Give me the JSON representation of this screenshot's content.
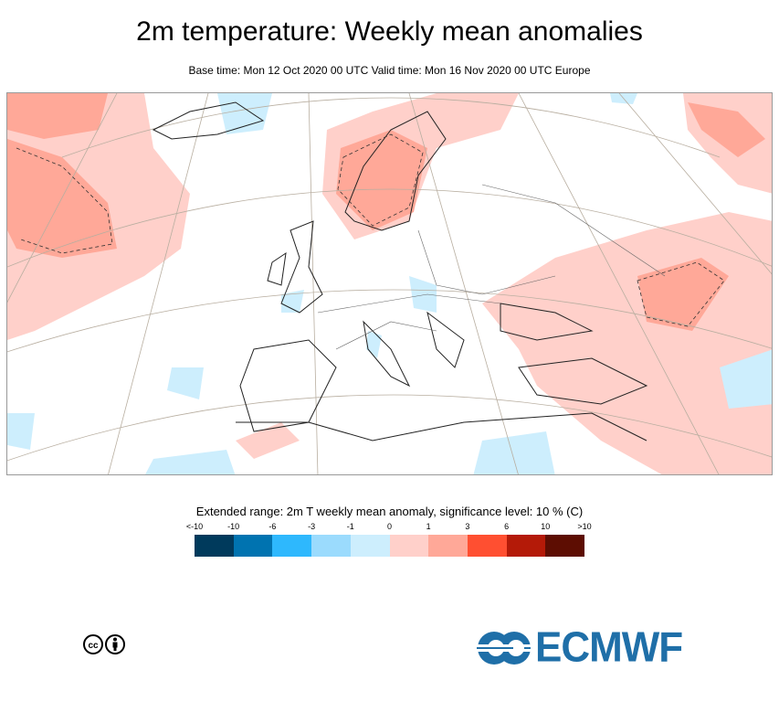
{
  "header": {
    "title": "2m temperature: Weekly mean anomalies",
    "subtitle": "Base time: Mon 12 Oct 2020 00 UTC Valid time: Mon 16 Nov 2020 00 UTC Europe"
  },
  "legend": {
    "title": "Extended range: 2m T weekly mean anomaly, significance level: 10 % (C)",
    "ticks": [
      "<-10",
      "-10",
      "-6",
      "-3",
      "-1",
      "0",
      "1",
      "3",
      "6",
      "10",
      ">10"
    ],
    "colors": [
      "#003a5c",
      "#0073b0",
      "#2eb8fd",
      "#9bdbfd",
      "#cdeefd",
      "#ffd0ca",
      "#ffa898",
      "#ff4f31",
      "#b41a08",
      "#5d0d02"
    ]
  },
  "footer": {
    "license": "cc-by-icon",
    "brand": "ECMWF"
  }
}
